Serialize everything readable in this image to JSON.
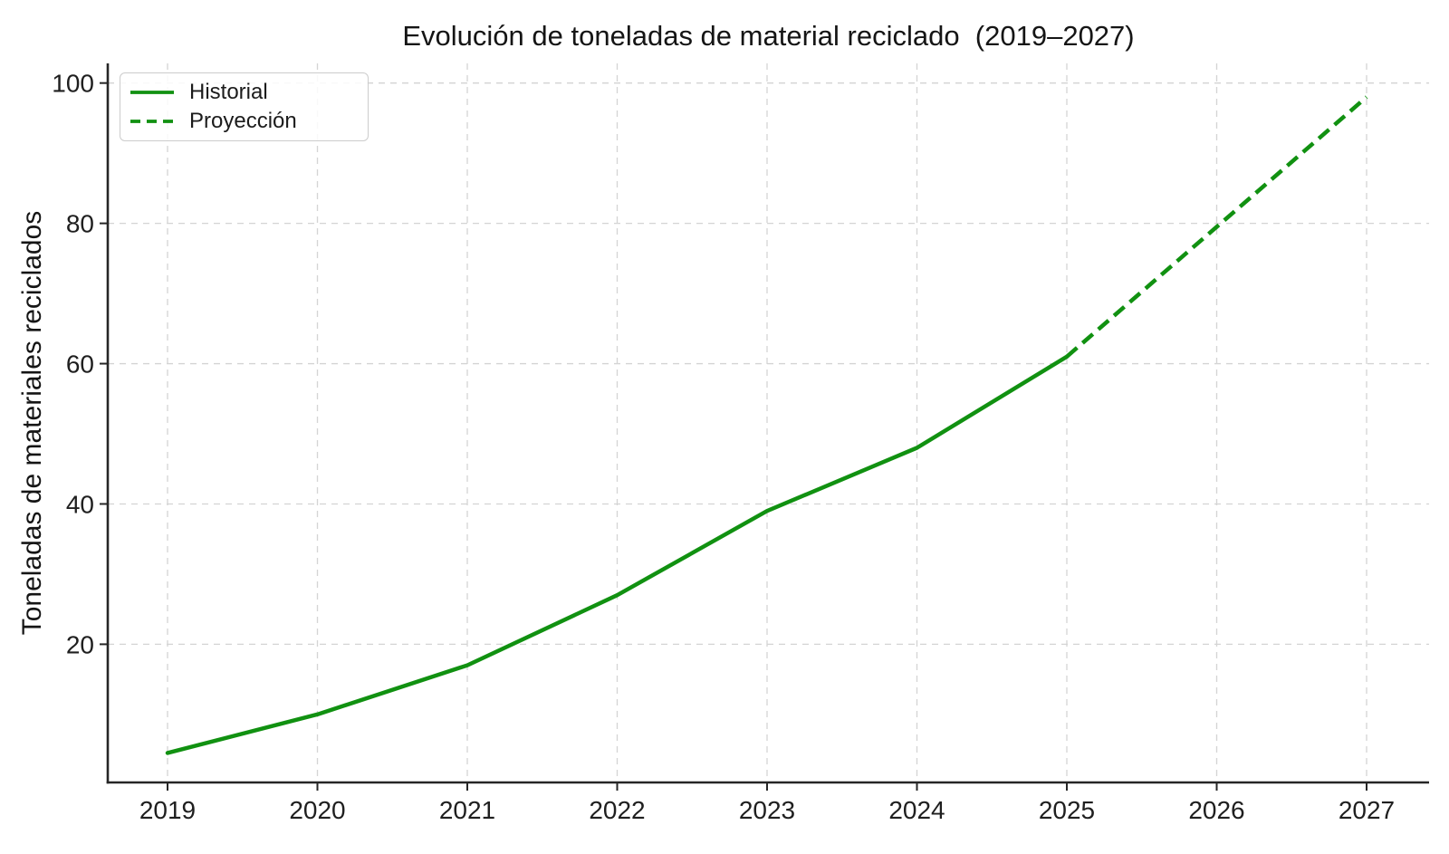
{
  "chart_data": {
    "type": "line",
    "title": "Evolución de toneladas de material reciclado  (2019–2027)",
    "ylabel": "Toneladas de materiales reciclados",
    "xlabel": "",
    "x": [
      2019,
      2020,
      2021,
      2022,
      2023,
      2024,
      2025,
      2026,
      2027
    ],
    "xtick_labels": [
      "2019",
      "2020",
      "2021",
      "2022",
      "2023",
      "2024",
      "2025",
      "2026",
      "2027"
    ],
    "yticks": [
      20,
      40,
      60,
      80,
      100
    ],
    "ylim": [
      0.3,
      102.8
    ],
    "xlim": [
      2019,
      2027
    ],
    "grid": true,
    "grid_style": "dashed",
    "legend_position": "upper-left",
    "series": [
      {
        "name": "Historial",
        "line_style": "solid",
        "color": "#119111",
        "x": [
          2019,
          2020,
          2021,
          2022,
          2023,
          2024,
          2025
        ],
        "values": [
          4.5,
          10,
          17,
          27,
          39,
          48,
          61
        ]
      },
      {
        "name": "Proyección",
        "line_style": "dashed",
        "color": "#119111",
        "x": [
          2025,
          2026,
          2027
        ],
        "values": [
          61,
          79.5,
          98
        ]
      }
    ],
    "colors": {
      "line": "#119111",
      "grid": "#d4d4d4",
      "spine": "#262626",
      "tick_label": "#1f1f1f",
      "title": "#151515",
      "legend_border": "#cccccc",
      "background": "#ffffff"
    }
  }
}
